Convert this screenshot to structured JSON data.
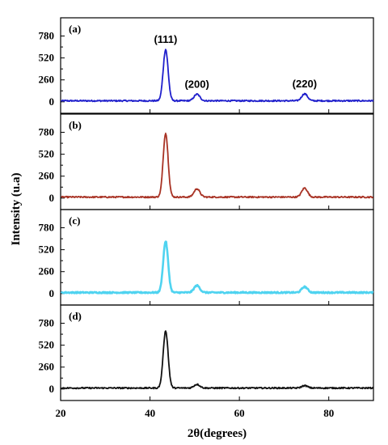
{
  "chart_data": {
    "type": "line",
    "xlabel": "2θ(degrees)",
    "ylabel": "Intensity (u.a)",
    "xlim": [
      20,
      90
    ],
    "xticks": [
      20,
      40,
      60,
      80
    ],
    "ylim": [
      -40,
      900
    ],
    "yticks": [
      0,
      260,
      520,
      780
    ],
    "panels": [
      {
        "label": "(a)",
        "color": "#1f1fcc",
        "peaks": [
          {
            "x": 43.5,
            "y": 620,
            "label": "(111)"
          },
          {
            "x": 50.5,
            "y": 90,
            "label": "(200)"
          },
          {
            "x": 74.6,
            "y": 95,
            "label": "(220)"
          }
        ]
      },
      {
        "label": "(b)",
        "color": "#a83224",
        "peaks": [
          {
            "x": 43.5,
            "y": 770
          },
          {
            "x": 50.5,
            "y": 110
          },
          {
            "x": 74.6,
            "y": 120
          }
        ]
      },
      {
        "label": "(c)",
        "color": "#4fd3f0",
        "peaks": [
          {
            "x": 43.5,
            "y": 620
          },
          {
            "x": 50.5,
            "y": 95
          },
          {
            "x": 74.6,
            "y": 80
          }
        ]
      },
      {
        "label": "(d)",
        "color": "#111111",
        "peaks": [
          {
            "x": 43.5,
            "y": 690
          },
          {
            "x": 50.5,
            "y": 55
          },
          {
            "x": 74.6,
            "y": 40
          }
        ]
      }
    ]
  }
}
